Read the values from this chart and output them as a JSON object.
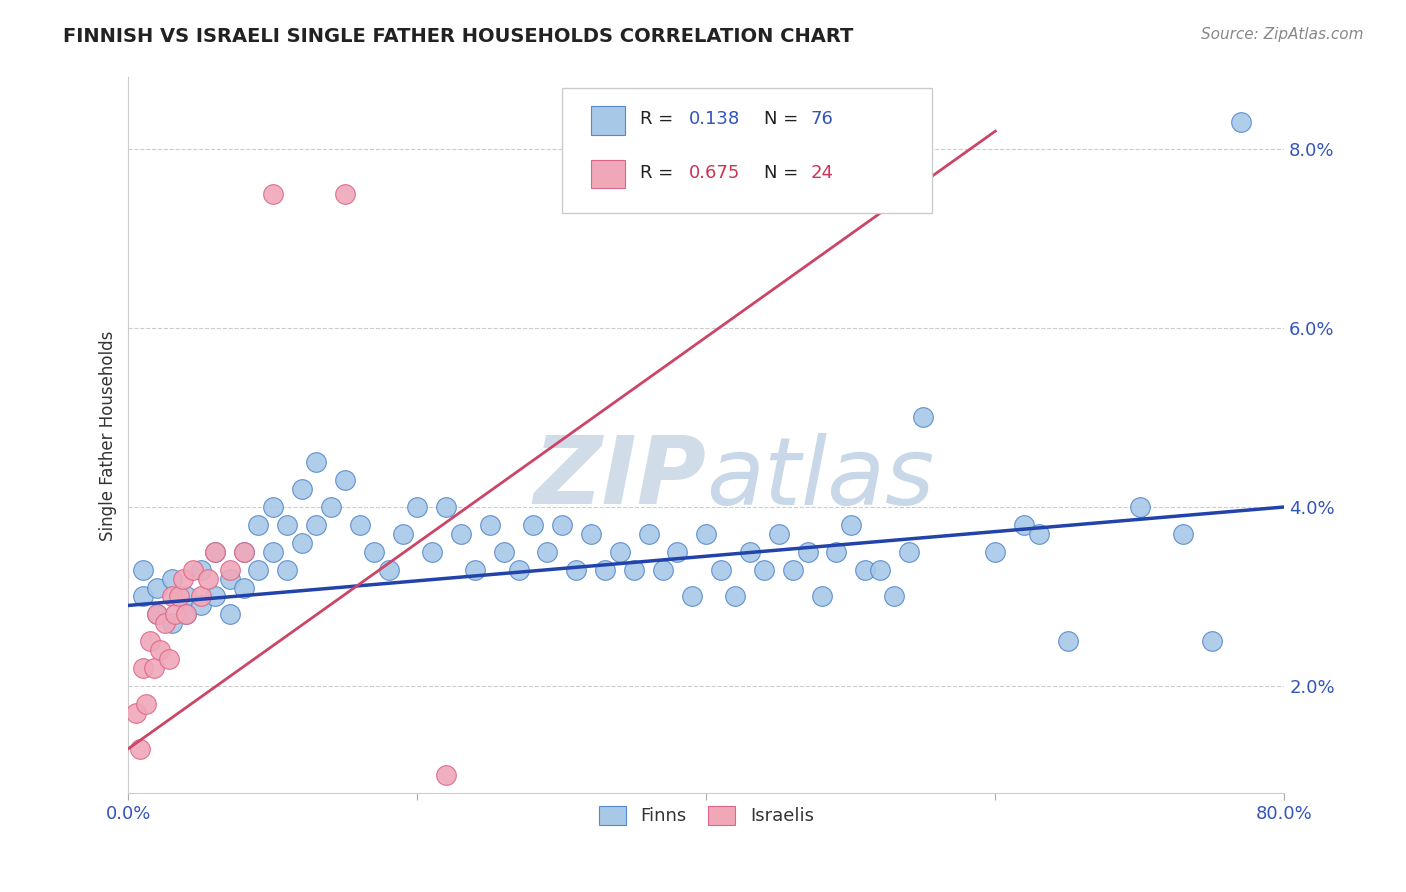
{
  "title": "FINNISH VS ISRAELI SINGLE FATHER HOUSEHOLDS CORRELATION CHART",
  "source": "Source: ZipAtlas.com",
  "ylabel": "Single Father Households",
  "xlim": [
    0.0,
    0.8
  ],
  "ylim": [
    0.008,
    0.088
  ],
  "y_ticks": [
    0.02,
    0.04,
    0.06,
    0.08
  ],
  "y_tick_labels": [
    "2.0%",
    "4.0%",
    "6.0%",
    "8.0%"
  ],
  "blue_color": "#a8c8e8",
  "pink_color": "#f0a8b8",
  "blue_line_color": "#2244aa",
  "pink_line_color": "#cc4466",
  "blue_edge": "#5588cc",
  "pink_edge": "#dd6688",
  "watermark_color": "#d0dce8",
  "finns_x": [
    0.01,
    0.01,
    0.02,
    0.02,
    0.03,
    0.03,
    0.04,
    0.04,
    0.05,
    0.05,
    0.06,
    0.06,
    0.07,
    0.07,
    0.08,
    0.08,
    0.09,
    0.09,
    0.1,
    0.1,
    0.11,
    0.11,
    0.12,
    0.12,
    0.13,
    0.13,
    0.14,
    0.15,
    0.16,
    0.17,
    0.18,
    0.19,
    0.2,
    0.21,
    0.22,
    0.23,
    0.24,
    0.25,
    0.26,
    0.27,
    0.28,
    0.29,
    0.3,
    0.31,
    0.32,
    0.33,
    0.34,
    0.35,
    0.36,
    0.37,
    0.38,
    0.39,
    0.4,
    0.41,
    0.42,
    0.43,
    0.44,
    0.45,
    0.46,
    0.47,
    0.48,
    0.49,
    0.5,
    0.51,
    0.52,
    0.53,
    0.54,
    0.55,
    0.6,
    0.62,
    0.63,
    0.65,
    0.7,
    0.73,
    0.75,
    0.77
  ],
  "finns_y": [
    0.03,
    0.033,
    0.028,
    0.031,
    0.027,
    0.032,
    0.03,
    0.028,
    0.033,
    0.029,
    0.035,
    0.03,
    0.032,
    0.028,
    0.035,
    0.031,
    0.038,
    0.033,
    0.04,
    0.035,
    0.038,
    0.033,
    0.042,
    0.036,
    0.045,
    0.038,
    0.04,
    0.043,
    0.038,
    0.035,
    0.033,
    0.037,
    0.04,
    0.035,
    0.04,
    0.037,
    0.033,
    0.038,
    0.035,
    0.033,
    0.038,
    0.035,
    0.038,
    0.033,
    0.037,
    0.033,
    0.035,
    0.033,
    0.037,
    0.033,
    0.035,
    0.03,
    0.037,
    0.033,
    0.03,
    0.035,
    0.033,
    0.037,
    0.033,
    0.035,
    0.03,
    0.035,
    0.038,
    0.033,
    0.033,
    0.03,
    0.035,
    0.05,
    0.035,
    0.038,
    0.037,
    0.025,
    0.04,
    0.037,
    0.025,
    0.083
  ],
  "israelis_x": [
    0.005,
    0.008,
    0.01,
    0.012,
    0.015,
    0.018,
    0.02,
    0.022,
    0.025,
    0.028,
    0.03,
    0.032,
    0.035,
    0.038,
    0.04,
    0.045,
    0.05,
    0.055,
    0.06,
    0.07,
    0.08,
    0.1,
    0.15,
    0.22
  ],
  "israelis_y": [
    0.017,
    0.013,
    0.022,
    0.018,
    0.025,
    0.022,
    0.028,
    0.024,
    0.027,
    0.023,
    0.03,
    0.028,
    0.03,
    0.032,
    0.028,
    0.033,
    0.03,
    0.032,
    0.035,
    0.033,
    0.035,
    0.075,
    0.075,
    0.01
  ],
  "finn_line_x": [
    0.0,
    0.8
  ],
  "finn_line_y": [
    0.029,
    0.04
  ],
  "isr_line_x": [
    0.0,
    0.6
  ],
  "isr_line_y": [
    0.013,
    0.082
  ]
}
